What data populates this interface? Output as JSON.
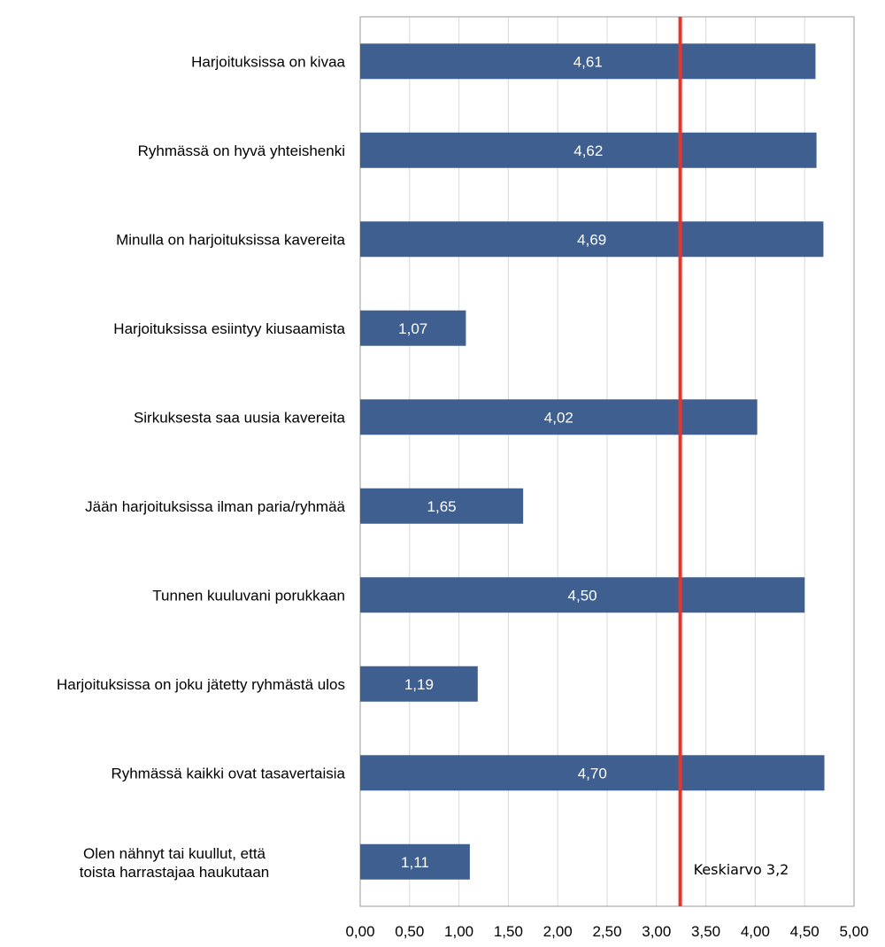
{
  "chart_data": {
    "type": "bar",
    "orientation": "horizontal",
    "categories": [
      "Harjoituksissa on kivaa",
      "Ryhmässä on hyvä yhteishenki",
      "Minulla on harjoituksissa kavereita",
      "Harjoituksissa esiintyy kiusaamista",
      "Sirkuksesta saa uusia kavereita",
      "Jään harjoituksissa ilman paria/ryhmää",
      "Tunnen kuuluvani porukkaan",
      "Harjoituksissa on joku jätetty ryhmästä ulos",
      "Ryhmässä kaikki ovat tasavertaisia",
      "Olen nähnyt tai kuullut, että toista harrastajaa haukutaan"
    ],
    "values": [
      4.61,
      4.62,
      4.69,
      1.07,
      4.02,
      1.65,
      4.5,
      1.19,
      4.7,
      1.11
    ],
    "value_labels": [
      "4,61",
      "4,62",
      "4,69",
      "1,07",
      "4,02",
      "1,65",
      "4,50",
      "1,19",
      "4,70",
      "1,11"
    ],
    "xlim": [
      0,
      5
    ],
    "x_ticks": [
      "0,00",
      "0,50",
      "1,00",
      "1,50",
      "2,00",
      "2,50",
      "3,00",
      "3,50",
      "4,00",
      "4,50",
      "5,00"
    ],
    "grid": true,
    "bar_color": "#3e5f8f",
    "reference_line": {
      "value": 3.24,
      "label": "Keskiarvo 3,2",
      "color": "#e8352a"
    }
  }
}
